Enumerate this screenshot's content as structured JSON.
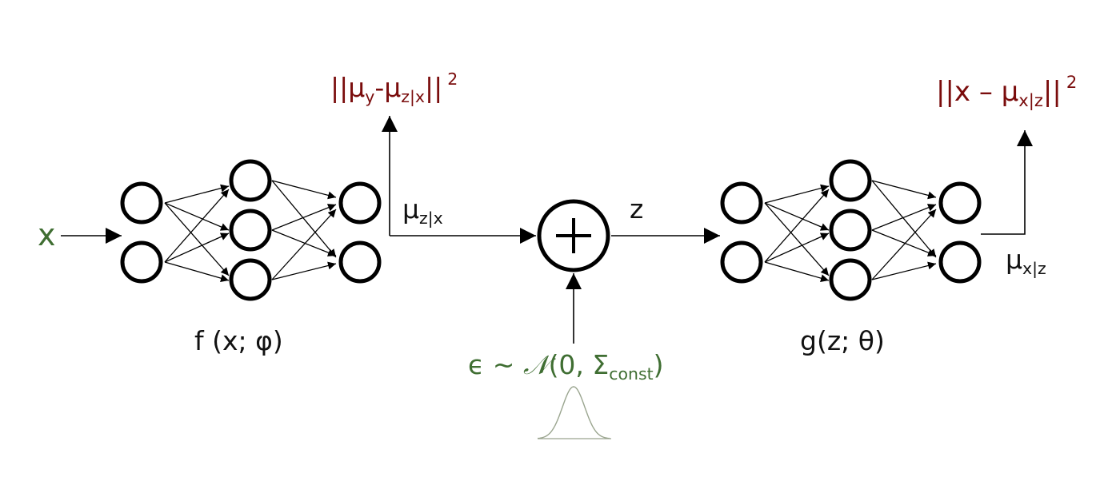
{
  "labels": {
    "input_x": "x",
    "encoder": "f (x; φ)",
    "encoder_output_base": "μ",
    "encoder_output_sub": "z|x",
    "latent_z": "z",
    "loss_latent_open": "||μ",
    "loss_latent_sub1": "y",
    "loss_latent_mid": "-μ",
    "loss_latent_sub2": "z|x",
    "loss_latent_close": "||",
    "loss_latent_exp": "2",
    "noise_prefix": "ϵ ~ ",
    "noise_dist": "𝒩",
    "noise_args": "(0, Σ",
    "noise_sub": "const",
    "noise_close": ")",
    "decoder": "g(z; θ)",
    "decoder_output_base": "μ",
    "decoder_output_sub": "x|z",
    "loss_recon_open": "||x – μ",
    "loss_recon_sub": "x|z",
    "loss_recon_close": "||",
    "loss_recon_exp": "2",
    "plus_symbol": "+"
  },
  "colors": {
    "stroke": "#000000",
    "green": "#3f6e32",
    "red": "#7a0c0c",
    "gaussian": "#9aa58f"
  }
}
